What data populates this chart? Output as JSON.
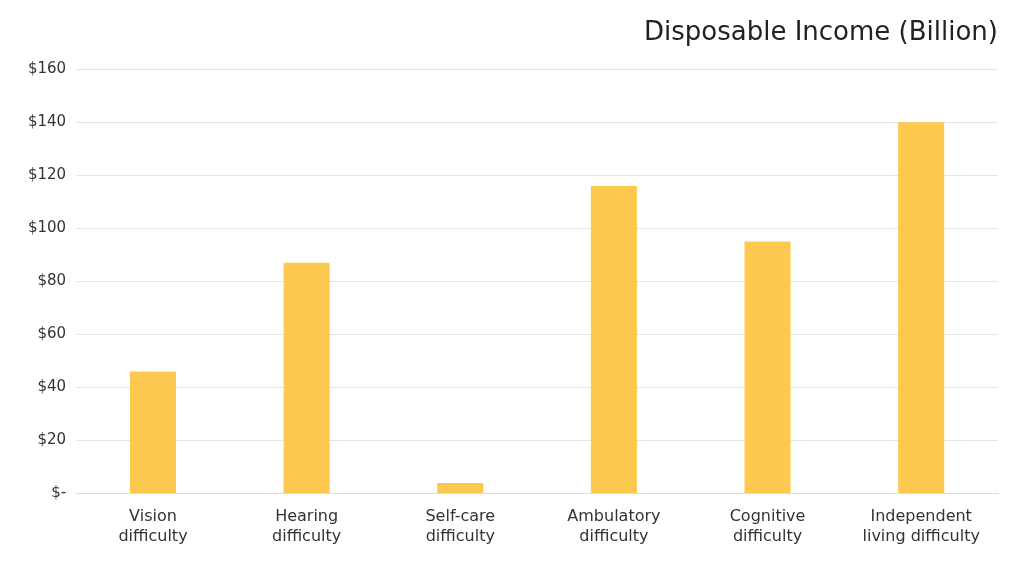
{
  "chart_data": {
    "type": "bar",
    "title": "Disposable Income (Billion)",
    "categories": [
      "Vision difficulty",
      "Hearing difficulty",
      "Self-care difficulty",
      "Ambulatory difficulty",
      "Cognitive difficulty",
      "Independent living difficulty"
    ],
    "values": [
      46,
      87,
      4,
      116,
      95,
      140
    ],
    "color": "#fdc94f",
    "ylim": [
      0,
      160
    ],
    "yticks": [
      {
        "value": 0,
        "label": "$-"
      },
      {
        "value": 20,
        "label": "$20"
      },
      {
        "value": 40,
        "label": "$40"
      },
      {
        "value": 60,
        "label": "$60"
      },
      {
        "value": 80,
        "label": "$80"
      },
      {
        "value": 100,
        "label": "$100"
      },
      {
        "value": 120,
        "label": "$120"
      },
      {
        "value": 140,
        "label": "$140"
      },
      {
        "value": 160,
        "label": "$160"
      }
    ],
    "grid": "y",
    "legend": false
  }
}
